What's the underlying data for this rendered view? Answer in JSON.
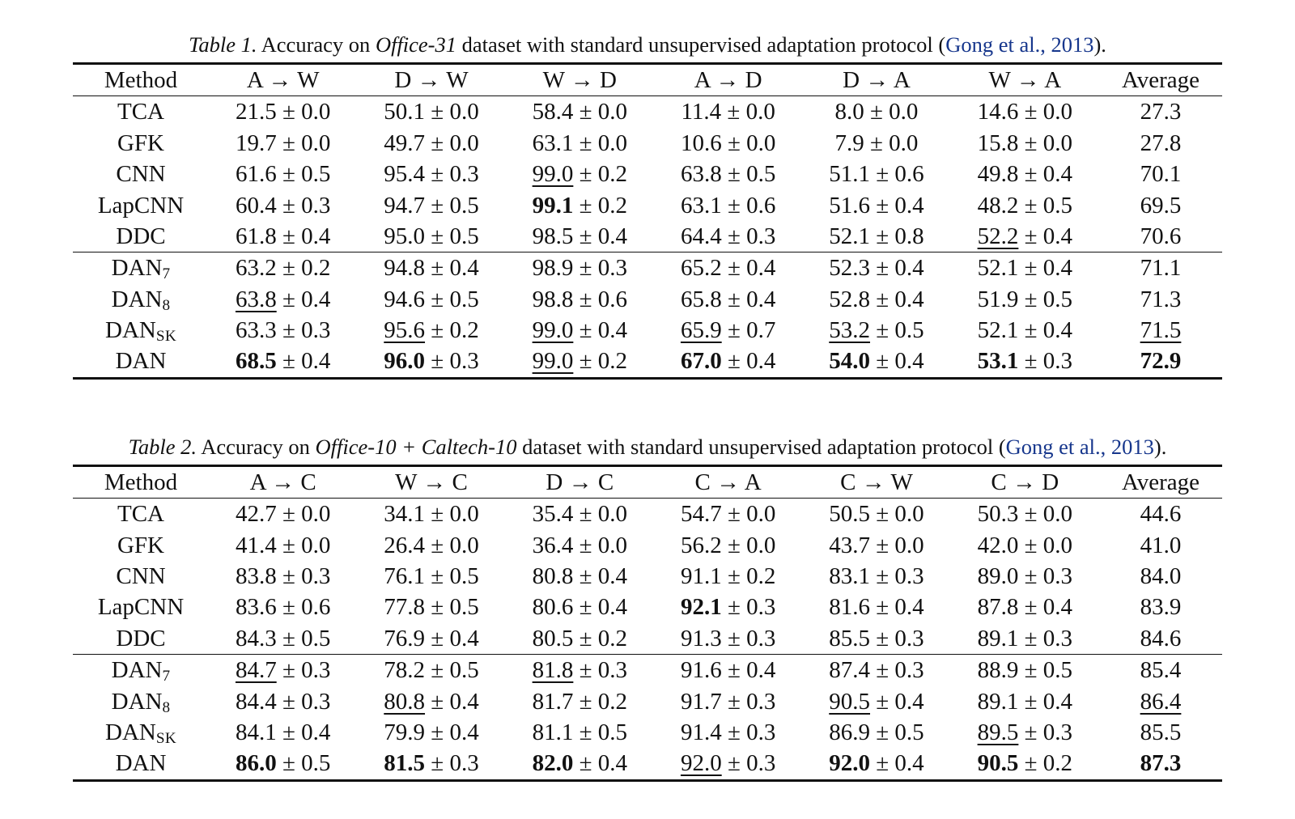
{
  "meta": {
    "background": "#ffffff",
    "text_color": "#111111",
    "link_color": "#16368c",
    "pm_symbol": "±"
  },
  "tables": [
    {
      "id": "table-1",
      "caption_segments": [
        {
          "text": "Table 1.",
          "style": "italic"
        },
        {
          "text": " Accuracy on ",
          "style": "normal"
        },
        {
          "text": "Office-31",
          "style": "italic"
        },
        {
          "text": " dataset with standard unsupervised adaptation protocol (",
          "style": "normal"
        },
        {
          "text": "Gong et al., 2013",
          "style": "link"
        },
        {
          "text": ").",
          "style": "normal"
        }
      ],
      "columns": [
        "Method",
        "A → W",
        "D → W",
        "W → D",
        "A → D",
        "D → A",
        "W → A",
        "Average"
      ],
      "groups": [
        [
          {
            "method": "TCA",
            "sub": "",
            "cells": [
              {
                "v": "21.5",
                "e": "0.0",
                "s": "n"
              },
              {
                "v": "50.1",
                "e": "0.0",
                "s": "n"
              },
              {
                "v": "58.4",
                "e": "0.0",
                "s": "n"
              },
              {
                "v": "11.4",
                "e": "0.0",
                "s": "n"
              },
              {
                "v": "8.0",
                "e": "0.0",
                "s": "n"
              },
              {
                "v": "14.6",
                "e": "0.0",
                "s": "n"
              }
            ],
            "avg": {
              "v": "27.3",
              "s": "n"
            }
          },
          {
            "method": "GFK",
            "sub": "",
            "cells": [
              {
                "v": "19.7",
                "e": "0.0",
                "s": "n"
              },
              {
                "v": "49.7",
                "e": "0.0",
                "s": "n"
              },
              {
                "v": "63.1",
                "e": "0.0",
                "s": "n"
              },
              {
                "v": "10.6",
                "e": "0.0",
                "s": "n"
              },
              {
                "v": "7.9",
                "e": "0.0",
                "s": "n"
              },
              {
                "v": "15.8",
                "e": "0.0",
                "s": "n"
              }
            ],
            "avg": {
              "v": "27.8",
              "s": "n"
            }
          },
          {
            "method": "CNN",
            "sub": "",
            "cells": [
              {
                "v": "61.6",
                "e": "0.5",
                "s": "n"
              },
              {
                "v": "95.4",
                "e": "0.3",
                "s": "n"
              },
              {
                "v": "99.0",
                "e": "0.2",
                "s": "u"
              },
              {
                "v": "63.8",
                "e": "0.5",
                "s": "n"
              },
              {
                "v": "51.1",
                "e": "0.6",
                "s": "n"
              },
              {
                "v": "49.8",
                "e": "0.4",
                "s": "n"
              }
            ],
            "avg": {
              "v": "70.1",
              "s": "n"
            }
          },
          {
            "method": "LapCNN",
            "sub": "",
            "cells": [
              {
                "v": "60.4",
                "e": "0.3",
                "s": "n"
              },
              {
                "v": "94.7",
                "e": "0.5",
                "s": "n"
              },
              {
                "v": "99.1",
                "e": "0.2",
                "s": "b"
              },
              {
                "v": "63.1",
                "e": "0.6",
                "s": "n"
              },
              {
                "v": "51.6",
                "e": "0.4",
                "s": "n"
              },
              {
                "v": "48.2",
                "e": "0.5",
                "s": "n"
              }
            ],
            "avg": {
              "v": "69.5",
              "s": "n"
            }
          },
          {
            "method": "DDC",
            "sub": "",
            "cells": [
              {
                "v": "61.8",
                "e": "0.4",
                "s": "n"
              },
              {
                "v": "95.0",
                "e": "0.5",
                "s": "n"
              },
              {
                "v": "98.5",
                "e": "0.4",
                "s": "n"
              },
              {
                "v": "64.4",
                "e": "0.3",
                "s": "n"
              },
              {
                "v": "52.1",
                "e": "0.8",
                "s": "n"
              },
              {
                "v": "52.2",
                "e": "0.4",
                "s": "u"
              }
            ],
            "avg": {
              "v": "70.6",
              "s": "n"
            }
          }
        ],
        [
          {
            "method": "DAN",
            "sub": "7",
            "cells": [
              {
                "v": "63.2",
                "e": "0.2",
                "s": "n"
              },
              {
                "v": "94.8",
                "e": "0.4",
                "s": "n"
              },
              {
                "v": "98.9",
                "e": "0.3",
                "s": "n"
              },
              {
                "v": "65.2",
                "e": "0.4",
                "s": "n"
              },
              {
                "v": "52.3",
                "e": "0.4",
                "s": "n"
              },
              {
                "v": "52.1",
                "e": "0.4",
                "s": "n"
              }
            ],
            "avg": {
              "v": "71.1",
              "s": "n"
            }
          },
          {
            "method": "DAN",
            "sub": "8",
            "cells": [
              {
                "v": "63.8",
                "e": "0.4",
                "s": "u"
              },
              {
                "v": "94.6",
                "e": "0.5",
                "s": "n"
              },
              {
                "v": "98.8",
                "e": "0.6",
                "s": "n"
              },
              {
                "v": "65.8",
                "e": "0.4",
                "s": "n"
              },
              {
                "v": "52.8",
                "e": "0.4",
                "s": "n"
              },
              {
                "v": "51.9",
                "e": "0.5",
                "s": "n"
              }
            ],
            "avg": {
              "v": "71.3",
              "s": "n"
            }
          },
          {
            "method": "DAN",
            "sub": "SK",
            "cells": [
              {
                "v": "63.3",
                "e": "0.3",
                "s": "n"
              },
              {
                "v": "95.6",
                "e": "0.2",
                "s": "u"
              },
              {
                "v": "99.0",
                "e": "0.4",
                "s": "u"
              },
              {
                "v": "65.9",
                "e": "0.7",
                "s": "u"
              },
              {
                "v": "53.2",
                "e": "0.5",
                "s": "u"
              },
              {
                "v": "52.1",
                "e": "0.4",
                "s": "n"
              }
            ],
            "avg": {
              "v": "71.5",
              "s": "u"
            }
          },
          {
            "method": "DAN",
            "sub": "",
            "cells": [
              {
                "v": "68.5",
                "e": "0.4",
                "s": "b"
              },
              {
                "v": "96.0",
                "e": "0.3",
                "s": "b"
              },
              {
                "v": "99.0",
                "e": "0.2",
                "s": "u"
              },
              {
                "v": "67.0",
                "e": "0.4",
                "s": "b"
              },
              {
                "v": "54.0",
                "e": "0.4",
                "s": "b"
              },
              {
                "v": "53.1",
                "e": "0.3",
                "s": "b"
              }
            ],
            "avg": {
              "v": "72.9",
              "s": "b"
            }
          }
        ]
      ]
    },
    {
      "id": "table-2",
      "caption_segments": [
        {
          "text": "Table 2.",
          "style": "italic"
        },
        {
          "text": " Accuracy on ",
          "style": "normal"
        },
        {
          "text": "Office-10 + Caltech-10",
          "style": "italic"
        },
        {
          "text": " dataset with standard unsupervised adaptation protocol (",
          "style": "normal"
        },
        {
          "text": "Gong et al., 2013",
          "style": "link"
        },
        {
          "text": ").",
          "style": "normal"
        }
      ],
      "columns": [
        "Method",
        "A → C",
        "W → C",
        "D → C",
        "C → A",
        "C → W",
        "C → D",
        "Average"
      ],
      "groups": [
        [
          {
            "method": "TCA",
            "sub": "",
            "cells": [
              {
                "v": "42.7",
                "e": "0.0",
                "s": "n"
              },
              {
                "v": "34.1",
                "e": "0.0",
                "s": "n"
              },
              {
                "v": "35.4",
                "e": "0.0",
                "s": "n"
              },
              {
                "v": "54.7",
                "e": "0.0",
                "s": "n"
              },
              {
                "v": "50.5",
                "e": "0.0",
                "s": "n"
              },
              {
                "v": "50.3",
                "e": "0.0",
                "s": "n"
              }
            ],
            "avg": {
              "v": "44.6",
              "s": "n"
            }
          },
          {
            "method": "GFK",
            "sub": "",
            "cells": [
              {
                "v": "41.4",
                "e": "0.0",
                "s": "n"
              },
              {
                "v": "26.4",
                "e": "0.0",
                "s": "n"
              },
              {
                "v": "36.4",
                "e": "0.0",
                "s": "n"
              },
              {
                "v": "56.2",
                "e": "0.0",
                "s": "n"
              },
              {
                "v": "43.7",
                "e": "0.0",
                "s": "n"
              },
              {
                "v": "42.0",
                "e": "0.0",
                "s": "n"
              }
            ],
            "avg": {
              "v": "41.0",
              "s": "n"
            }
          },
          {
            "method": "CNN",
            "sub": "",
            "cells": [
              {
                "v": "83.8",
                "e": "0.3",
                "s": "n"
              },
              {
                "v": "76.1",
                "e": "0.5",
                "s": "n"
              },
              {
                "v": "80.8",
                "e": "0.4",
                "s": "n"
              },
              {
                "v": "91.1",
                "e": "0.2",
                "s": "n"
              },
              {
                "v": "83.1",
                "e": "0.3",
                "s": "n"
              },
              {
                "v": "89.0",
                "e": "0.3",
                "s": "n"
              }
            ],
            "avg": {
              "v": "84.0",
              "s": "n"
            }
          },
          {
            "method": "LapCNN",
            "sub": "",
            "cells": [
              {
                "v": "83.6",
                "e": "0.6",
                "s": "n"
              },
              {
                "v": "77.8",
                "e": "0.5",
                "s": "n"
              },
              {
                "v": "80.6",
                "e": "0.4",
                "s": "n"
              },
              {
                "v": "92.1",
                "e": "0.3",
                "s": "b"
              },
              {
                "v": "81.6",
                "e": "0.4",
                "s": "n"
              },
              {
                "v": "87.8",
                "e": "0.4",
                "s": "n"
              }
            ],
            "avg": {
              "v": "83.9",
              "s": "n"
            }
          },
          {
            "method": "DDC",
            "sub": "",
            "cells": [
              {
                "v": "84.3",
                "e": "0.5",
                "s": "n"
              },
              {
                "v": "76.9",
                "e": "0.4",
                "s": "n"
              },
              {
                "v": "80.5",
                "e": "0.2",
                "s": "n"
              },
              {
                "v": "91.3",
                "e": "0.3",
                "s": "n"
              },
              {
                "v": "85.5",
                "e": "0.3",
                "s": "n"
              },
              {
                "v": "89.1",
                "e": "0.3",
                "s": "n"
              }
            ],
            "avg": {
              "v": "84.6",
              "s": "n"
            }
          }
        ],
        [
          {
            "method": "DAN",
            "sub": "7",
            "cells": [
              {
                "v": "84.7",
                "e": "0.3",
                "s": "u"
              },
              {
                "v": "78.2",
                "e": "0.5",
                "s": "n"
              },
              {
                "v": "81.8",
                "e": "0.3",
                "s": "u"
              },
              {
                "v": "91.6",
                "e": "0.4",
                "s": "n"
              },
              {
                "v": "87.4",
                "e": "0.3",
                "s": "n"
              },
              {
                "v": "88.9",
                "e": "0.5",
                "s": "n"
              }
            ],
            "avg": {
              "v": "85.4",
              "s": "n"
            }
          },
          {
            "method": "DAN",
            "sub": "8",
            "cells": [
              {
                "v": "84.4",
                "e": "0.3",
                "s": "n"
              },
              {
                "v": "80.8",
                "e": "0.4",
                "s": "u"
              },
              {
                "v": "81.7",
                "e": "0.2",
                "s": "n"
              },
              {
                "v": "91.7",
                "e": "0.3",
                "s": "n"
              },
              {
                "v": "90.5",
                "e": "0.4",
                "s": "u"
              },
              {
                "v": "89.1",
                "e": "0.4",
                "s": "n"
              }
            ],
            "avg": {
              "v": "86.4",
              "s": "u"
            }
          },
          {
            "method": "DAN",
            "sub": "SK",
            "cells": [
              {
                "v": "84.1",
                "e": "0.4",
                "s": "n"
              },
              {
                "v": "79.9",
                "e": "0.4",
                "s": "n"
              },
              {
                "v": "81.1",
                "e": "0.5",
                "s": "n"
              },
              {
                "v": "91.4",
                "e": "0.3",
                "s": "n"
              },
              {
                "v": "86.9",
                "e": "0.5",
                "s": "n"
              },
              {
                "v": "89.5",
                "e": "0.3",
                "s": "u"
              }
            ],
            "avg": {
              "v": "85.5",
              "s": "n"
            }
          },
          {
            "method": "DAN",
            "sub": "",
            "cells": [
              {
                "v": "86.0",
                "e": "0.5",
                "s": "b"
              },
              {
                "v": "81.5",
                "e": "0.3",
                "s": "b"
              },
              {
                "v": "82.0",
                "e": "0.4",
                "s": "b"
              },
              {
                "v": "92.0",
                "e": "0.3",
                "s": "u"
              },
              {
                "v": "92.0",
                "e": "0.4",
                "s": "b"
              },
              {
                "v": "90.5",
                "e": "0.2",
                "s": "b"
              }
            ],
            "avg": {
              "v": "87.3",
              "s": "b"
            }
          }
        ]
      ]
    }
  ]
}
